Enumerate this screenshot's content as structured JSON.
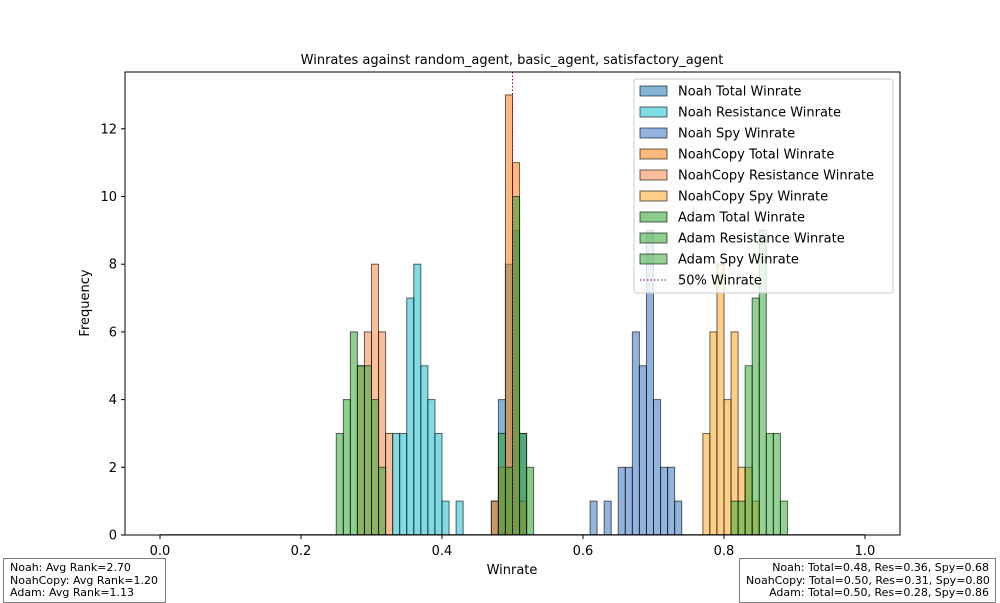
{
  "chart_data": {
    "type": "histogram",
    "title": "Winrates against random_agent, basic_agent, satisfactory_agent",
    "xlabel": "Winrate",
    "ylabel": "Frequency",
    "xlim": [
      -0.05,
      1.05
    ],
    "ylim": [
      0,
      13.65
    ],
    "xticks": [
      "0.0",
      "0.2",
      "0.4",
      "0.6",
      "0.8",
      "1.0"
    ],
    "yticks": [
      "0",
      "2",
      "4",
      "6",
      "8",
      "10",
      "12"
    ],
    "bin_width": 0.01,
    "grid": false,
    "legend_position": "upper right",
    "series": [
      {
        "name": "Noah Total Winrate",
        "color": "#1f77b4",
        "bins": [
          [
            0.47,
            1
          ],
          [
            0.48,
            4
          ],
          [
            0.49,
            8
          ],
          [
            0.5,
            9
          ],
          [
            0.51,
            3
          ]
        ]
      },
      {
        "name": "Noah Resistance Winrate",
        "color": "#17becf",
        "bins": [
          [
            0.33,
            3
          ],
          [
            0.34,
            3
          ],
          [
            0.35,
            7
          ],
          [
            0.36,
            8
          ],
          [
            0.37,
            5
          ],
          [
            0.38,
            4
          ],
          [
            0.39,
            3
          ],
          [
            0.4,
            1
          ],
          [
            0.42,
            1
          ]
        ]
      },
      {
        "name": "Noah Spy Winrate",
        "color": "#3a75c4",
        "bins": [
          [
            0.61,
            1
          ],
          [
            0.63,
            1
          ],
          [
            0.65,
            2
          ],
          [
            0.66,
            2
          ],
          [
            0.67,
            6
          ],
          [
            0.68,
            5
          ],
          [
            0.69,
            9
          ],
          [
            0.7,
            4
          ],
          [
            0.71,
            2
          ],
          [
            0.72,
            2
          ],
          [
            0.73,
            1
          ]
        ]
      },
      {
        "name": "NoahCopy Total Winrate",
        "color": "#ff7f0e",
        "bins": [
          [
            0.47,
            1
          ],
          [
            0.48,
            2
          ],
          [
            0.49,
            13
          ],
          [
            0.5,
            11
          ],
          [
            0.51,
            1
          ]
        ]
      },
      {
        "name": "NoahCopy Resistance Winrate",
        "color": "#f4894a",
        "bins": [
          [
            0.28,
            5
          ],
          [
            0.29,
            6
          ],
          [
            0.3,
            8
          ],
          [
            0.31,
            6
          ],
          [
            0.32,
            3
          ]
        ]
      },
      {
        "name": "NoahCopy Spy Winrate",
        "color": "#ffa726",
        "bins": [
          [
            0.77,
            3
          ],
          [
            0.78,
            6
          ],
          [
            0.79,
            8
          ],
          [
            0.8,
            4
          ],
          [
            0.81,
            6
          ],
          [
            0.82,
            2
          ],
          [
            0.83,
            2
          ],
          [
            0.84,
            1
          ]
        ]
      },
      {
        "name": "Adam Total Winrate",
        "color": "#2ca02c",
        "bins": [
          [
            0.48,
            3
          ],
          [
            0.49,
            2
          ],
          [
            0.5,
            10
          ],
          [
            0.51,
            3
          ],
          [
            0.52,
            2
          ]
        ]
      },
      {
        "name": "Adam Resistance Winrate",
        "color": "#33a833",
        "bins": [
          [
            0.25,
            3
          ],
          [
            0.26,
            4
          ],
          [
            0.27,
            6
          ],
          [
            0.28,
            5
          ],
          [
            0.29,
            5
          ],
          [
            0.3,
            4
          ],
          [
            0.31,
            2
          ]
        ]
      },
      {
        "name": "Adam Spy Winrate",
        "color": "#3aad3a",
        "bins": [
          [
            0.81,
            1
          ],
          [
            0.82,
            1
          ],
          [
            0.83,
            5
          ],
          [
            0.84,
            7
          ],
          [
            0.85,
            9
          ],
          [
            0.86,
            3
          ],
          [
            0.87,
            3
          ],
          [
            0.88,
            1
          ]
        ]
      }
    ],
    "reference_line": {
      "name": "50% Winrate",
      "x": 0.5,
      "style": "dotted",
      "color": "#800080"
    },
    "legend": [
      "Noah Total Winrate",
      "Noah Resistance Winrate",
      "Noah Spy Winrate",
      "NoahCopy Total Winrate",
      "NoahCopy Resistance Winrate",
      "NoahCopy Spy Winrate",
      "Adam Total Winrate",
      "Adam Resistance Winrate",
      "Adam Spy Winrate",
      "50% Winrate"
    ]
  },
  "annotations": {
    "left": [
      "Noah: Avg Rank=2.70",
      "NoahCopy: Avg Rank=1.20",
      "Adam: Avg Rank=1.13"
    ],
    "right": [
      "Noah: Total=0.48, Res=0.36, Spy=0.68",
      "NoahCopy: Total=0.50, Res=0.31, Spy=0.80",
      "Adam: Total=0.50, Res=0.28, Spy=0.86"
    ]
  }
}
